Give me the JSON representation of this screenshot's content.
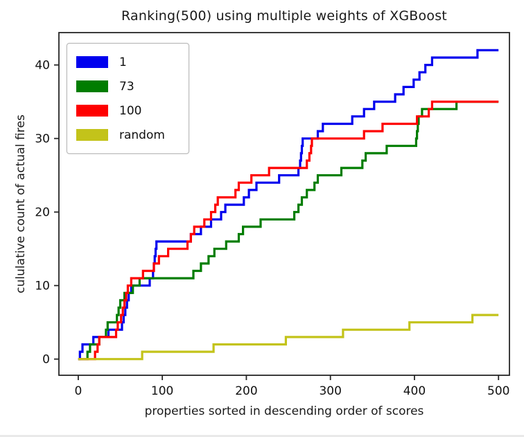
{
  "chart_data": {
    "type": "line",
    "subtype": "cumulative-step",
    "title": "Ranking(500) using multiple weights of XGBoost",
    "xlabel": "properties sorted in descending order of scores",
    "ylabel": "cululative count of actual fires",
    "xticks": [
      0,
      100,
      200,
      300,
      400,
      500
    ],
    "yticks": [
      0,
      10,
      20,
      30,
      40
    ],
    "xlim": [
      -23,
      513
    ],
    "ylim": [
      -2.2,
      44.4
    ],
    "x_start": 0,
    "x_end": 500,
    "grid": false,
    "legend_position": "upper-left",
    "axis_color": "#262626",
    "series": [
      {
        "name": "1",
        "color": "#0000ee",
        "final_count": 42,
        "step_x": [
          2,
          5,
          18,
          36,
          52,
          54,
          56,
          58,
          60,
          63,
          85,
          89,
          90,
          91,
          92,
          93,
          134,
          146,
          158,
          170,
          175,
          197,
          203,
          212,
          239,
          262,
          264,
          265,
          266,
          267,
          285,
          291,
          326,
          340,
          352,
          377,
          387,
          399,
          406,
          413,
          421,
          475
        ]
      },
      {
        "name": "73",
        "color": "#007d00",
        "final_count": 35,
        "step_x": [
          11,
          14,
          25,
          33,
          35,
          46,
          48,
          50,
          55,
          65,
          73,
          137,
          146,
          155,
          162,
          176,
          191,
          196,
          217,
          257,
          262,
          266,
          272,
          281,
          285,
          313,
          338,
          342,
          367,
          402,
          403,
          404,
          405,
          409,
          450
        ]
      },
      {
        "name": "100",
        "color": "#fe0000",
        "final_count": 35,
        "step_x": [
          20,
          23,
          25,
          45,
          47,
          51,
          53,
          55,
          57,
          59,
          63,
          77,
          90,
          96,
          107,
          130,
          134,
          138,
          150,
          158,
          163,
          166,
          187,
          191,
          206,
          227,
          272,
          275,
          277,
          278,
          340,
          362,
          403,
          417,
          421
        ]
      },
      {
        "name": "random",
        "color": "#c3c31a",
        "final_count": 6,
        "step_x": [
          76,
          161,
          247,
          315,
          394,
          469
        ]
      }
    ]
  }
}
